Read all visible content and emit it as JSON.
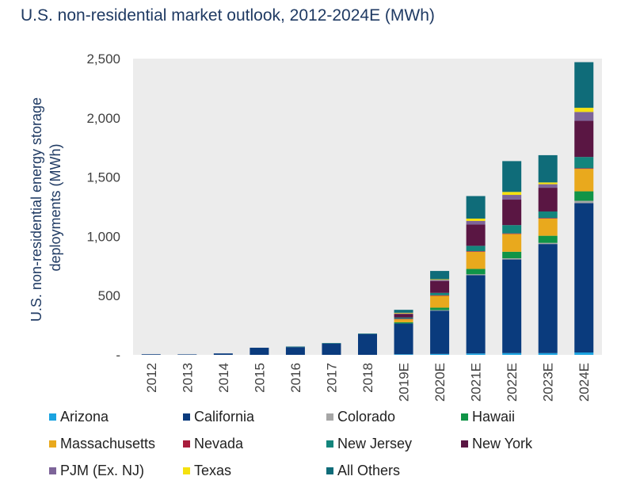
{
  "chart_data": {
    "type": "bar",
    "stacked": true,
    "title": "U.S. non-residential market outlook, 2012-2024E (MWh)",
    "xlabel": "",
    "ylabel": "U.S. non-residential energy storage deployments (MWh)",
    "ylim": [
      0,
      2500
    ],
    "yticks": [
      0,
      500,
      1000,
      1500,
      2000,
      2500
    ],
    "ytick_labels": [
      "-",
      "500",
      "1,000",
      "1,500",
      "2,000",
      "2,500"
    ],
    "grid": false,
    "legend_position": "bottom",
    "categories": [
      "2012",
      "2013",
      "2014",
      "2015",
      "2016",
      "2017",
      "2018",
      "2019E",
      "2020E",
      "2021E",
      "2022E",
      "2023E",
      "2024E"
    ],
    "series": [
      {
        "name": "Arizona",
        "color": "#1ba3e0",
        "values": [
          0,
          0,
          0,
          0,
          0,
          0,
          0,
          5,
          8,
          12,
          15,
          15,
          20
        ]
      },
      {
        "name": "California",
        "color": "#0a3b7d",
        "values": [
          5,
          4,
          12,
          60,
          65,
          95,
          175,
          260,
          365,
          660,
          790,
          920,
          1260
        ]
      },
      {
        "name": "Colorado",
        "color": "#a6a6a6",
        "values": [
          0,
          0,
          0,
          0,
          0,
          0,
          0,
          0,
          5,
          8,
          10,
          10,
          20
        ]
      },
      {
        "name": "Hawaii",
        "color": "#109447",
        "values": [
          0,
          0,
          0,
          0,
          0,
          0,
          0,
          10,
          20,
          45,
          55,
          60,
          80
        ]
      },
      {
        "name": "Massachusetts",
        "color": "#e9a91d",
        "values": [
          0,
          0,
          0,
          0,
          0,
          0,
          0,
          25,
          100,
          145,
          150,
          145,
          190
        ]
      },
      {
        "name": "Nevada",
        "color": "#a81c3c",
        "values": [
          0,
          0,
          0,
          0,
          0,
          0,
          0,
          5,
          5,
          5,
          5,
          5,
          5
        ]
      },
      {
        "name": "New Jersey",
        "color": "#13857c",
        "values": [
          0,
          0,
          0,
          0,
          0,
          0,
          0,
          10,
          20,
          45,
          70,
          55,
          95
        ]
      },
      {
        "name": "New York",
        "color": "#5a1643",
        "values": [
          0,
          0,
          0,
          0,
          0,
          0,
          0,
          30,
          100,
          180,
          215,
          200,
          305
        ]
      },
      {
        "name": "PJM (Ex. NJ)",
        "color": "#7d6499",
        "values": [
          0,
          0,
          0,
          0,
          0,
          0,
          0,
          5,
          10,
          30,
          40,
          30,
          75
        ]
      },
      {
        "name": "Texas",
        "color": "#f5e10f",
        "values": [
          0,
          0,
          0,
          0,
          0,
          0,
          0,
          5,
          5,
          20,
          25,
          15,
          35
        ]
      },
      {
        "name": "All Others",
        "color": "#0f6c79",
        "values": [
          0,
          0,
          0,
          0,
          5,
          5,
          5,
          25,
          70,
          190,
          260,
          230,
          385
        ]
      }
    ]
  }
}
